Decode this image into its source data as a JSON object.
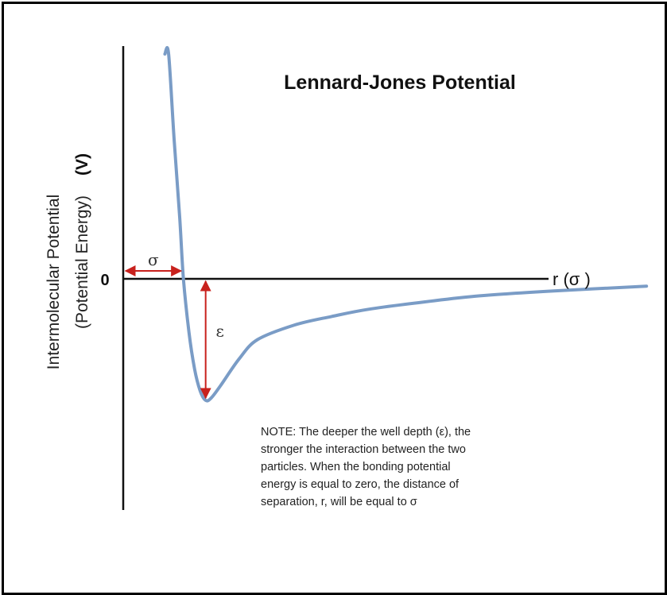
{
  "chart_data": {
    "type": "line",
    "title": "Lennard-Jones Potential",
    "ylabel": "Intermolecular Potential",
    "ylabel_secondary": "(Potential Energy)",
    "ylabel_unit": "(V)",
    "xlabel": "r (σ )",
    "y_tick_labels": [
      "0"
    ],
    "grid": false,
    "legend": "none",
    "curve_color": "#7a9cc6",
    "annotation_color": "#c8211d",
    "annotations": {
      "sigma_label": "σ",
      "epsilon_label": "ε"
    },
    "series": [
      {
        "x": [
          0.9,
          0.92,
          0.95,
          0.98,
          1.0,
          1.03,
          1.06,
          1.09,
          1.12,
          1.15,
          1.2,
          1.3,
          1.4,
          1.6,
          1.8,
          2.0,
          2.3,
          2.6,
          3.0,
          3.5
        ],
        "values": [
          2.72,
          1.96,
          1.14,
          0.5,
          0.0,
          -0.44,
          -0.74,
          -0.92,
          -1.0,
          -0.98,
          -0.88,
          -0.66,
          -0.5,
          -0.38,
          -0.31,
          -0.25,
          -0.19,
          -0.14,
          -0.1,
          -0.06
        ]
      }
    ],
    "note_lines": [
      "NOTE: The deeper the well depth (ε), the",
      "stronger the interaction between the two",
      "particles.  When the bonding potential",
      "energy is equal to zero, the distance of",
      "separation, r, will be equal to σ"
    ]
  }
}
